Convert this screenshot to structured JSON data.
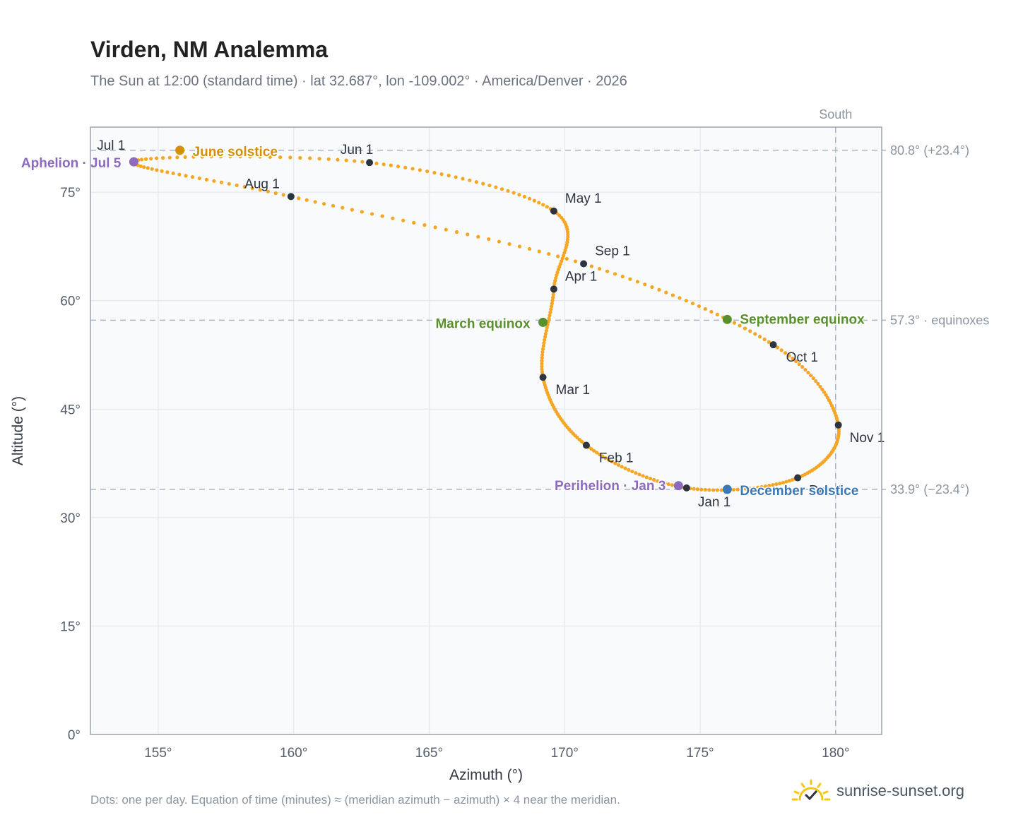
{
  "header": {
    "title": "Virden, NM Analemma",
    "subtitle": "The Sun at 12:00 (standard time) · lat 32.687°, lon -109.002° · America/Denver · 2026"
  },
  "footer": {
    "note": "Dots: one per day. Equation of time (minutes) ≈ (meridian azimuth − azimuth) × 4 near the meridian.",
    "brand": "sunrise-sunset.org"
  },
  "colors": {
    "path": "#f5a623",
    "month_marker": "#2d3440",
    "solstice_june": "#d4900a",
    "equinox": "#5a8f2e",
    "solstice_december": "#3a78b8",
    "apsis": "#8c6bbd",
    "reference_line": "#aab4c3",
    "plot_background": "#f8fafc",
    "grid": "#e3e8ee",
    "frame": "#9aa5b4"
  },
  "chart_data": {
    "type": "scatter",
    "title": "Virden, NM Analemma",
    "xlabel": "Azimuth (°)",
    "ylabel": "Altitude (°)",
    "xlim": [
      152.5,
      181.7
    ],
    "ylim": [
      0,
      84
    ],
    "x_ticks": [
      155,
      160,
      165,
      170,
      175,
      180
    ],
    "x_tick_labels": [
      "155°",
      "160°",
      "165°",
      "170°",
      "175°",
      "180°"
    ],
    "y_ticks": [
      0,
      15,
      30,
      45,
      60,
      75
    ],
    "y_tick_labels": [
      "0°",
      "15°",
      "30°",
      "45°",
      "60°",
      "75°"
    ],
    "grid": true,
    "meridian": {
      "azimuth": 180,
      "label": "South"
    },
    "reference_lines": [
      {
        "altitude": 80.8,
        "label": "80.8° (+23.4°)"
      },
      {
        "altitude": 57.3,
        "label": "57.3° · equinoxes"
      },
      {
        "altitude": 33.9,
        "label": "33.9° (−23.4°)"
      }
    ],
    "month_markers": [
      {
        "label": "Jan 1",
        "azimuth": 174.5,
        "altitude": 34.1
      },
      {
        "label": "Feb 1",
        "azimuth": 170.8,
        "altitude": 40.0
      },
      {
        "label": "Mar 1",
        "azimuth": 169.2,
        "altitude": 49.4
      },
      {
        "label": "Apr 1",
        "azimuth": 169.6,
        "altitude": 61.6
      },
      {
        "label": "May 1",
        "azimuth": 169.6,
        "altitude": 72.4
      },
      {
        "label": "Jun 1",
        "azimuth": 162.8,
        "altitude": 79.1
      },
      {
        "label": "Jul 1",
        "azimuth": 154.1,
        "altitude": 79.3
      },
      {
        "label": "Aug 1",
        "azimuth": 159.9,
        "altitude": 74.4
      },
      {
        "label": "Sep 1",
        "azimuth": 170.7,
        "altitude": 65.1
      },
      {
        "label": "Oct 1",
        "azimuth": 177.7,
        "altitude": 53.9
      },
      {
        "label": "Nov 1",
        "azimuth": 180.1,
        "altitude": 42.8
      },
      {
        "label": "Dec 1",
        "azimuth": 178.6,
        "altitude": 35.5
      }
    ],
    "events": [
      {
        "label": "June solstice",
        "azimuth": 155.8,
        "altitude": 80.8,
        "kind": "solstice_june"
      },
      {
        "label": "March equinox",
        "azimuth": 169.2,
        "altitude": 57.0,
        "kind": "equinox"
      },
      {
        "label": "September equinox",
        "azimuth": 176.0,
        "altitude": 57.4,
        "kind": "equinox"
      },
      {
        "label": "December solstice",
        "azimuth": 176.0,
        "altitude": 33.9,
        "kind": "solstice_december"
      },
      {
        "label": "Aphelion · Jul 5",
        "azimuth": 154.1,
        "altitude": 79.2,
        "kind": "apsis"
      },
      {
        "label": "Perihelion · Jan 3",
        "azimuth": 174.2,
        "altitude": 34.4,
        "kind": "apsis"
      }
    ]
  }
}
